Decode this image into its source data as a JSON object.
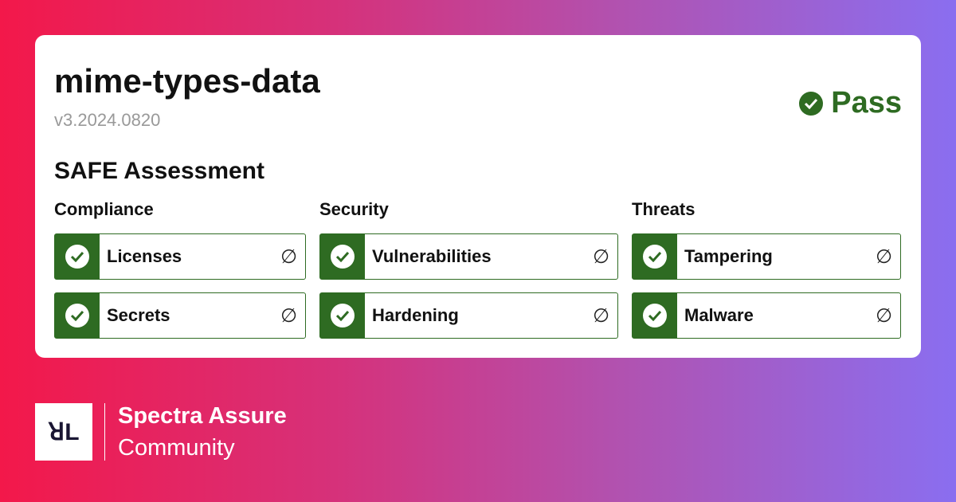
{
  "package": {
    "name": "mime-types-data",
    "version": "v3.2024.0820"
  },
  "status": {
    "label": "Pass",
    "icon": "check-circle-icon",
    "color": "#2e6b22"
  },
  "assessment": {
    "title": "SAFE Assessment",
    "columns": [
      {
        "heading": "Compliance",
        "items": [
          {
            "label": "Licenses",
            "status": "pass",
            "detail": "∅"
          },
          {
            "label": "Secrets",
            "status": "pass",
            "detail": "∅"
          }
        ]
      },
      {
        "heading": "Security",
        "items": [
          {
            "label": "Vulnerabilities",
            "status": "pass",
            "detail": "∅"
          },
          {
            "label": "Hardening",
            "status": "pass",
            "detail": "∅"
          }
        ]
      },
      {
        "heading": "Threats",
        "items": [
          {
            "label": "Tampering",
            "status": "pass",
            "detail": "∅"
          },
          {
            "label": "Malware",
            "status": "pass",
            "detail": "∅"
          }
        ]
      }
    ]
  },
  "footer": {
    "logo_text": "ꓤL",
    "brand": "Spectra Assure",
    "edition": "Community"
  }
}
